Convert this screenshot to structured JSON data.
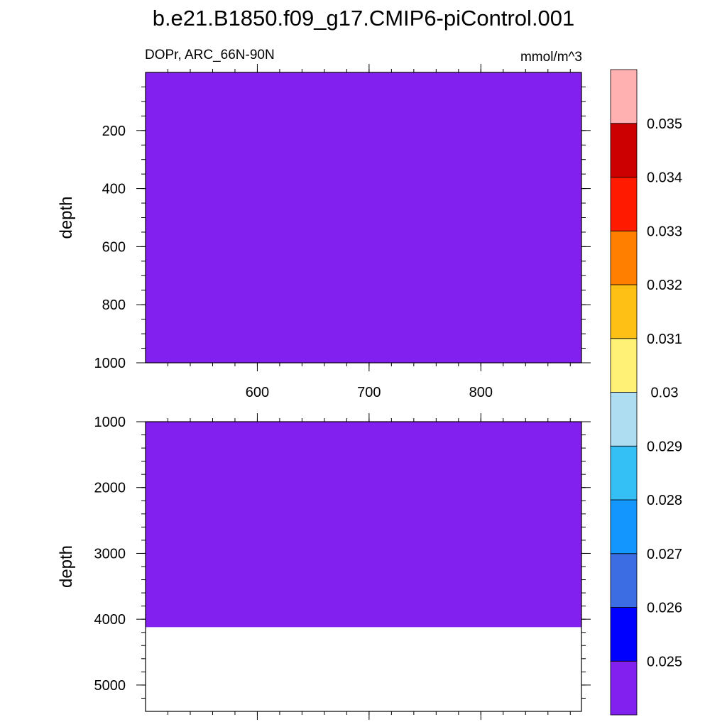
{
  "title": "b.e21.B1850.f09_g17.CMIP6-piControl.001",
  "left_label": "DOPr, ARC_66N-90N",
  "right_label": "mmol/m^3",
  "colors": {
    "fill": "#8221EF",
    "frame": "#000000",
    "colorbar": [
      "#8221EF",
      "#0000FF",
      "#3C6DE2",
      "#1496FF",
      "#34C0F5",
      "#AEDCF0",
      "#FFF176",
      "#FFC016",
      "#FF7F00",
      "#FF1A00",
      "#CC0000",
      "#FFB0B0"
    ]
  },
  "chart_data": [
    {
      "type": "heatmap",
      "panel": "top",
      "xlim": [
        500,
        890
      ],
      "ylim": [
        1000,
        0
      ],
      "x_ticks": [
        600,
        700,
        800
      ],
      "x_tick_labels": [
        "600",
        "700",
        "800"
      ],
      "y_ticks": [
        200,
        400,
        600,
        800,
        1000
      ],
      "y_tick_labels": [
        "200",
        "400",
        "600",
        "800",
        "1000"
      ],
      "xlabel": "",
      "ylabel": "depth",
      "fill_depth_range": [
        0,
        1000
      ],
      "fill_value_bin": "< 0.025"
    },
    {
      "type": "heatmap",
      "panel": "bottom",
      "xlim": [
        500,
        890
      ],
      "ylim": [
        5400,
        1000
      ],
      "x_ticks": [
        600,
        700,
        800
      ],
      "x_tick_labels": [],
      "y_ticks": [
        1000,
        2000,
        3000,
        4000,
        5000
      ],
      "y_tick_labels": [
        "1000",
        "2000",
        "3000",
        "4000",
        "5000"
      ],
      "xlabel": "",
      "ylabel": "depth",
      "fill_depth_range": [
        1000,
        4120
      ],
      "fill_value_bin": "< 0.025"
    }
  ],
  "colorbar": {
    "levels": [
      0.025,
      0.026,
      0.027,
      0.028,
      0.029,
      0.03,
      0.031,
      0.032,
      0.033,
      0.034,
      0.035
    ],
    "labels": [
      "0.025",
      "0.026",
      "0.027",
      "0.028",
      "0.029",
      "0.03",
      "0.031",
      "0.032",
      "0.033",
      "0.034",
      "0.035"
    ]
  }
}
